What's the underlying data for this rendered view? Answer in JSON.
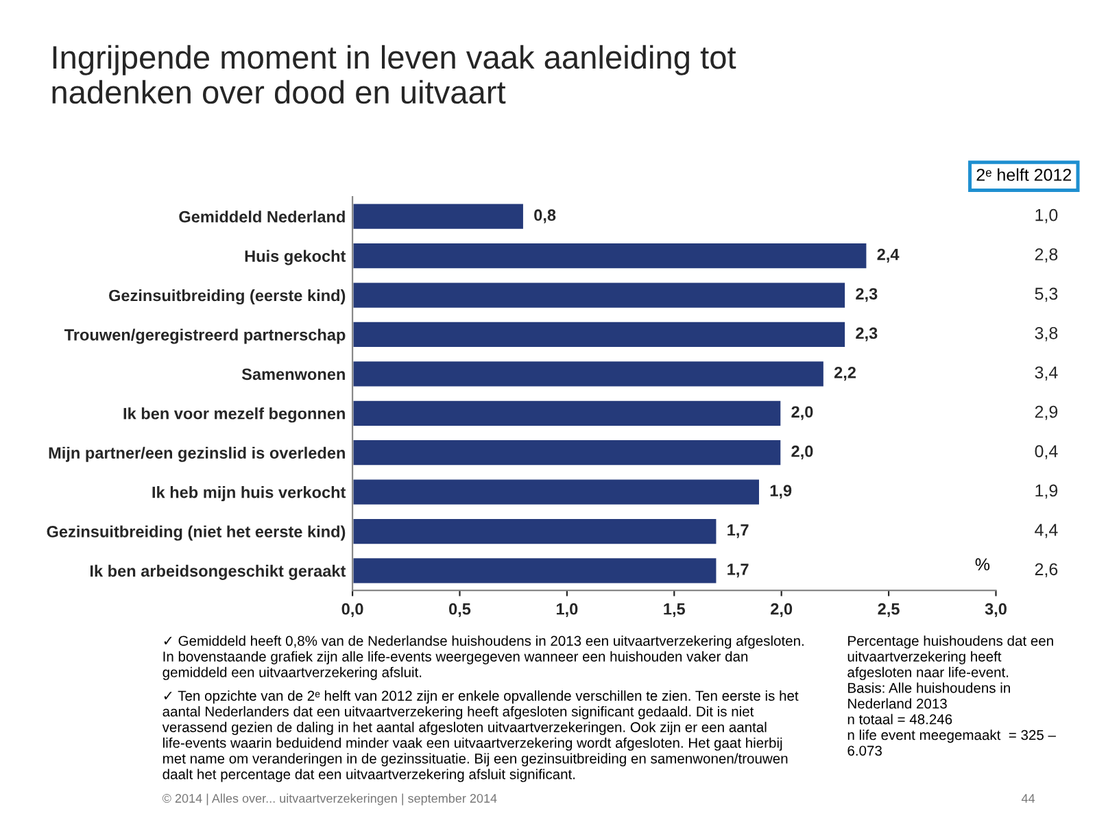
{
  "chart_data": {
    "type": "bar",
    "orientation": "horizontal",
    "title": "Ingrijpende moment in leven vaak aanleiding tot\nnadenken over dood en uitvaart",
    "categories": [
      "Gemiddeld Nederland",
      "Huis gekocht",
      "Gezinsuitbreiding (eerste kind)",
      "Trouwen/geregistreerd partnerschap",
      "Samenwonen",
      "Ik ben voor mezelf begonnen",
      "Mijn partner/een gezinslid is overleden",
      "Ik heb mijn huis verkocht",
      "Gezinsuitbreiding (niet het eerste kind)",
      "Ik ben arbeidsongeschikt geraakt"
    ],
    "values": [
      0.8,
      2.4,
      2.3,
      2.3,
      2.2,
      2.0,
      2.0,
      1.9,
      1.7,
      1.7
    ],
    "value_labels": [
      "0,8",
      "2,4",
      "2,3",
      "2,3",
      "2,2",
      "2,0",
      "2,0",
      "1,9",
      "1,7",
      "1,7"
    ],
    "color": "#253a7a",
    "xlim": [
      0,
      3
    ],
    "xticks": [
      {
        "value": 0,
        "label": "0,0"
      },
      {
        "value": 0.5,
        "label": "0,5"
      },
      {
        "value": 1,
        "label": "1,0"
      },
      {
        "value": 1.5,
        "label": "1,5"
      },
      {
        "value": 2,
        "label": "2,0"
      },
      {
        "value": 2.5,
        "label": "2,5"
      },
      {
        "value": 3,
        "label": "3,0"
      }
    ],
    "grid": false,
    "legend": false,
    "annotations": [
      "2ᵉ helft 2012",
      "1,0",
      "2,8",
      "5,3",
      "3,8",
      "3,4",
      "2,9",
      "0,4",
      "1,9",
      "4,4",
      "2,6",
      "%",
      "✓ Gemiddeld heeft 0,8% van de Nederlandse huishoudens in 2013 een uitvaartverzekering afgesloten. In bovenstaande grafiek zijn alle life-events weergegeven wanneer een huishouden vaker dan gemiddeld een uitvaartverzekering afsluit.",
      "✓ Ten opzichte van de 2ᵉ helft van 2012 zijn er enkele opvallende verschillen te zien. Ten eerste is het aantal Nederlanders dat een uitvaartverzekering heeft afgesloten significant gedaald. Dit is niet verassend gezien de daling in het aantal afgesloten uitvaartverzekeringen. Ook zijn er een aantal life-events waarin beduidend minder vaak een uitvaartverzekering wordt afgesloten. Het gaat hierbij met name om veranderingen in de gezinssituatie. Bij een gezinsuitbreiding en samenwonen/trouwen daalt het percentage dat een uitvaartverzekering afsluit significant.",
      "Percentage huishoudens dat een uitvaartverzekering heeft afgesloten naar life-event.\nBasis: Alle huishoudens in Nederland 2013\nn totaal = 48.246\nn life event meegemaakt  = 325 – 6.073",
      "© 2014 | Alles over... uitvaartverzekeringen | september 2014",
      "44"
    ]
  }
}
